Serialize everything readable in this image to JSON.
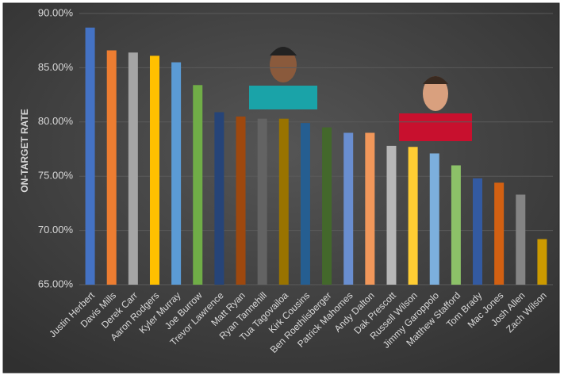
{
  "chart_data": {
    "type": "bar",
    "y_label": "ON-TARGET RATE",
    "categories": [
      "Justin Herbert",
      "Davis Mills",
      "Derek Carr",
      "Aaron Rodgers",
      "Kyler Murray",
      "Joe Burrow",
      "Trevor Lawrence",
      "Matt Ryan",
      "Ryan Tannehill",
      "Tua Tagovailoa",
      "Kirk Cousins",
      "Ben Roethlisberger",
      "Patrick Mahomes",
      "Andy Dalton",
      "Dak Prescott",
      "Russell Wilson",
      "Jimmy Garoppolo",
      "Matthew Stafford",
      "Tom Brady",
      "Mac Jones",
      "Josh Allen",
      "Zach Wilson"
    ],
    "values": [
      88.7,
      86.6,
      86.4,
      86.1,
      85.5,
      83.4,
      80.9,
      80.5,
      80.3,
      80.3,
      79.9,
      79.5,
      79.0,
      79.0,
      77.8,
      77.7,
      77.1,
      76.0,
      74.8,
      74.4,
      73.3,
      69.2
    ],
    "colors": [
      "#4472c4",
      "#ed7d31",
      "#a5a5a5",
      "#ffc000",
      "#5b9bd5",
      "#70ad47",
      "#264478",
      "#9e480e",
      "#636363",
      "#997300",
      "#255e91",
      "#43682b",
      "#698ed0",
      "#f1975a",
      "#b7b7b7",
      "#ffcd33",
      "#7cafdd",
      "#8cc168",
      "#335aa1",
      "#d26012",
      "#848484",
      "#cc9a00"
    ],
    "ylim": [
      65,
      90
    ],
    "yticks": [
      {
        "value": 65,
        "label": "65.00%"
      },
      {
        "value": 70,
        "label": "70.00%"
      },
      {
        "value": 75,
        "label": "75.00%"
      },
      {
        "value": 80,
        "label": "80.00%"
      },
      {
        "value": 85,
        "label": "85.00%"
      },
      {
        "value": 90,
        "label": "90.00%"
      }
    ],
    "grid": true
  }
}
